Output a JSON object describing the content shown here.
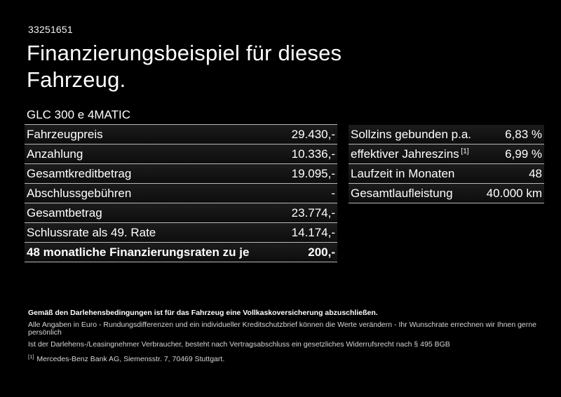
{
  "page": {
    "vehicle_id": "33251651",
    "title": "Finanzierungsbeispiel für dieses Fahrzeug.",
    "model": "GLC 300 e 4MATIC"
  },
  "finance_table": {
    "rows": [
      {
        "label": "Fahrzeugpreis",
        "value": "29.430,-",
        "bold": false
      },
      {
        "label": "Anzahlung",
        "value": "10.336,-",
        "bold": false
      },
      {
        "label": "Gesamtkreditbetrag",
        "value": "19.095,-",
        "bold": false
      },
      {
        "label": "Abschlussgebühren",
        "value": "-",
        "bold": false
      },
      {
        "label": "Gesamtbetrag",
        "value": "23.774,-",
        "bold": false
      },
      {
        "label": "Schlussrate als 49. Rate",
        "value": "14.174,-",
        "bold": false
      },
      {
        "label": "48 monatliche Finanzierungsraten zu je",
        "value": "200,-",
        "bold": true
      }
    ]
  },
  "conditions_table": {
    "rows": [
      {
        "label": "Sollzins gebunden p.a.",
        "value": "6,83 %",
        "bold": false
      },
      {
        "label": "effektiver Jahreszins",
        "label_sup": "[1]",
        "value": "6,99 %",
        "bold": false
      },
      {
        "label": "Laufzeit in Monaten",
        "value": "48",
        "bold": false
      },
      {
        "label": "Gesamtlaufleistung",
        "value": "40.000 km",
        "bold": false
      }
    ]
  },
  "footnotes": {
    "insurance_note": "Gemäß den Darlehensbedingungen ist für das Fahrzeug eine Vollkaskoversicherung abzuschließen.",
    "general_note": "Alle Angaben in Euro - Rundungsdifferenzen und ein individueller Kreditschutzbrief können die Werte verändern - Ihr Wunschrate errechnen wir Ihnen gerne persönlich",
    "withdrawal_note": "Ist der Darlehens-/Leasingnehmer Verbraucher, besteht nach Vertragsabschluss ein gesetzliches Widerrufsrecht nach § 495 BGB",
    "bank_note_marker": "[1]",
    "bank_note": "Mercedes-Benz Bank AG, Siemensstr. 7, 70469 Stuttgart."
  },
  "colors": {
    "background": "#000000",
    "text": "#ffffff",
    "separator_line": "#b8b8b8",
    "row_background": "#151515",
    "fineprint_text": "#d6d6d6"
  }
}
